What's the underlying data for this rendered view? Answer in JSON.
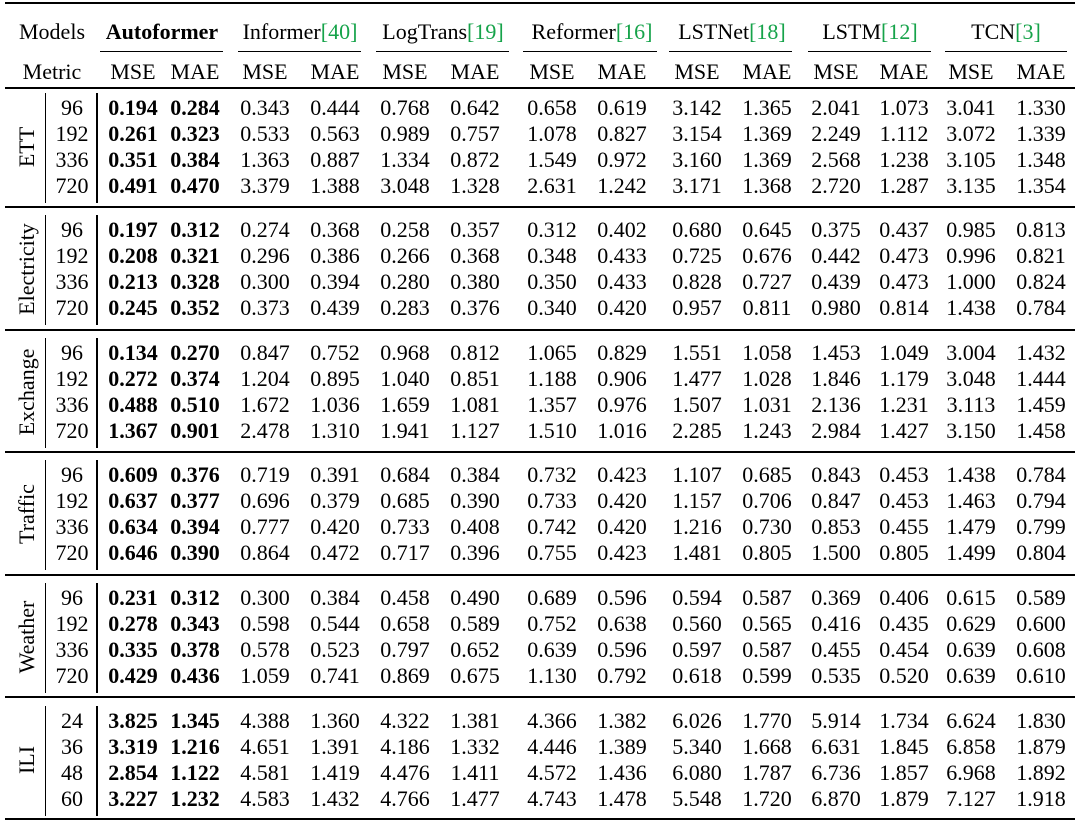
{
  "header": {
    "corner_models": "Models",
    "corner_metric": "Metric",
    "models": [
      {
        "name": "Autoformer",
        "ref": "",
        "bold": true
      },
      {
        "name": "Informer",
        "ref": "[40]",
        "bold": false
      },
      {
        "name": "LogTrans",
        "ref": "[19]",
        "bold": false
      },
      {
        "name": "Reformer",
        "ref": "[16]",
        "bold": false
      },
      {
        "name": "LSTNet",
        "ref": "[18]",
        "bold": false
      },
      {
        "name": "LSTM",
        "ref": "[12]",
        "bold": false
      },
      {
        "name": "TCN",
        "ref": "[3]",
        "bold": false
      }
    ],
    "metrics": [
      "MSE",
      "MAE"
    ]
  },
  "groups": [
    {
      "name": "ETT",
      "rows": [
        {
          "h": "96",
          "v": [
            "0.194",
            "0.284",
            "0.343",
            "0.444",
            "0.768",
            "0.642",
            "0.658",
            "0.619",
            "3.142",
            "1.365",
            "2.041",
            "1.073",
            "3.041",
            "1.330"
          ]
        },
        {
          "h": "192",
          "v": [
            "0.261",
            "0.323",
            "0.533",
            "0.563",
            "0.989",
            "0.757",
            "1.078",
            "0.827",
            "3.154",
            "1.369",
            "2.249",
            "1.112",
            "3.072",
            "1.339"
          ]
        },
        {
          "h": "336",
          "v": [
            "0.351",
            "0.384",
            "1.363",
            "0.887",
            "1.334",
            "0.872",
            "1.549",
            "0.972",
            "3.160",
            "1.369",
            "2.568",
            "1.238",
            "3.105",
            "1.348"
          ]
        },
        {
          "h": "720",
          "v": [
            "0.491",
            "0.470",
            "3.379",
            "1.388",
            "3.048",
            "1.328",
            "2.631",
            "1.242",
            "3.171",
            "1.368",
            "2.720",
            "1.287",
            "3.135",
            "1.354"
          ]
        }
      ]
    },
    {
      "name": "Electricity",
      "rows": [
        {
          "h": "96",
          "v": [
            "0.197",
            "0.312",
            "0.274",
            "0.368",
            "0.258",
            "0.357",
            "0.312",
            "0.402",
            "0.680",
            "0.645",
            "0.375",
            "0.437",
            "0.985",
            "0.813"
          ]
        },
        {
          "h": "192",
          "v": [
            "0.208",
            "0.321",
            "0.296",
            "0.386",
            "0.266",
            "0.368",
            "0.348",
            "0.433",
            "0.725",
            "0.676",
            "0.442",
            "0.473",
            "0.996",
            "0.821"
          ]
        },
        {
          "h": "336",
          "v": [
            "0.213",
            "0.328",
            "0.300",
            "0.394",
            "0.280",
            "0.380",
            "0.350",
            "0.433",
            "0.828",
            "0.727",
            "0.439",
            "0.473",
            "1.000",
            "0.824"
          ]
        },
        {
          "h": "720",
          "v": [
            "0.245",
            "0.352",
            "0.373",
            "0.439",
            "0.283",
            "0.376",
            "0.340",
            "0.420",
            "0.957",
            "0.811",
            "0.980",
            "0.814",
            "1.438",
            "0.784"
          ]
        }
      ]
    },
    {
      "name": "Exchange",
      "rows": [
        {
          "h": "96",
          "v": [
            "0.134",
            "0.270",
            "0.847",
            "0.752",
            "0.968",
            "0.812",
            "1.065",
            "0.829",
            "1.551",
            "1.058",
            "1.453",
            "1.049",
            "3.004",
            "1.432"
          ]
        },
        {
          "h": "192",
          "v": [
            "0.272",
            "0.374",
            "1.204",
            "0.895",
            "1.040",
            "0.851",
            "1.188",
            "0.906",
            "1.477",
            "1.028",
            "1.846",
            "1.179",
            "3.048",
            "1.444"
          ]
        },
        {
          "h": "336",
          "v": [
            "0.488",
            "0.510",
            "1.672",
            "1.036",
            "1.659",
            "1.081",
            "1.357",
            "0.976",
            "1.507",
            "1.031",
            "2.136",
            "1.231",
            "3.113",
            "1.459"
          ]
        },
        {
          "h": "720",
          "v": [
            "1.367",
            "0.901",
            "2.478",
            "1.310",
            "1.941",
            "1.127",
            "1.510",
            "1.016",
            "2.285",
            "1.243",
            "2.984",
            "1.427",
            "3.150",
            "1.458"
          ]
        }
      ]
    },
    {
      "name": "Traffic",
      "rows": [
        {
          "h": "96",
          "v": [
            "0.609",
            "0.376",
            "0.719",
            "0.391",
            "0.684",
            "0.384",
            "0.732",
            "0.423",
            "1.107",
            "0.685",
            "0.843",
            "0.453",
            "1.438",
            "0.784"
          ]
        },
        {
          "h": "192",
          "v": [
            "0.637",
            "0.377",
            "0.696",
            "0.379",
            "0.685",
            "0.390",
            "0.733",
            "0.420",
            "1.157",
            "0.706",
            "0.847",
            "0.453",
            "1.463",
            "0.794"
          ]
        },
        {
          "h": "336",
          "v": [
            "0.634",
            "0.394",
            "0.777",
            "0.420",
            "0.733",
            "0.408",
            "0.742",
            "0.420",
            "1.216",
            "0.730",
            "0.853",
            "0.455",
            "1.479",
            "0.799"
          ]
        },
        {
          "h": "720",
          "v": [
            "0.646",
            "0.390",
            "0.864",
            "0.472",
            "0.717",
            "0.396",
            "0.755",
            "0.423",
            "1.481",
            "0.805",
            "1.500",
            "0.805",
            "1.499",
            "0.804"
          ]
        }
      ]
    },
    {
      "name": "Weather",
      "rows": [
        {
          "h": "96",
          "v": [
            "0.231",
            "0.312",
            "0.300",
            "0.384",
            "0.458",
            "0.490",
            "0.689",
            "0.596",
            "0.594",
            "0.587",
            "0.369",
            "0.406",
            "0.615",
            "0.589"
          ]
        },
        {
          "h": "192",
          "v": [
            "0.278",
            "0.343",
            "0.598",
            "0.544",
            "0.658",
            "0.589",
            "0.752",
            "0.638",
            "0.560",
            "0.565",
            "0.416",
            "0.435",
            "0.629",
            "0.600"
          ]
        },
        {
          "h": "336",
          "v": [
            "0.335",
            "0.378",
            "0.578",
            "0.523",
            "0.797",
            "0.652",
            "0.639",
            "0.596",
            "0.597",
            "0.587",
            "0.455",
            "0.454",
            "0.639",
            "0.608"
          ]
        },
        {
          "h": "720",
          "v": [
            "0.429",
            "0.436",
            "1.059",
            "0.741",
            "0.869",
            "0.675",
            "1.130",
            "0.792",
            "0.618",
            "0.599",
            "0.535",
            "0.520",
            "0.639",
            "0.610"
          ]
        }
      ]
    },
    {
      "name": "ILI",
      "rows": [
        {
          "h": "24",
          "v": [
            "3.825",
            "1.345",
            "4.388",
            "1.360",
            "4.322",
            "1.381",
            "4.366",
            "1.382",
            "6.026",
            "1.770",
            "5.914",
            "1.734",
            "6.624",
            "1.830"
          ]
        },
        {
          "h": "36",
          "v": [
            "3.319",
            "1.216",
            "4.651",
            "1.391",
            "4.186",
            "1.332",
            "4.446",
            "1.389",
            "5.340",
            "1.668",
            "6.631",
            "1.845",
            "6.858",
            "1.879"
          ]
        },
        {
          "h": "48",
          "v": [
            "2.854",
            "1.122",
            "4.581",
            "1.419",
            "4.476",
            "1.411",
            "4.572",
            "1.436",
            "6.080",
            "1.787",
            "6.736",
            "1.857",
            "6.968",
            "1.892"
          ]
        },
        {
          "h": "60",
          "v": [
            "3.227",
            "1.232",
            "4.583",
            "1.432",
            "4.766",
            "1.477",
            "4.743",
            "1.478",
            "5.548",
            "1.720",
            "6.870",
            "1.879",
            "7.127",
            "1.918"
          ]
        }
      ]
    }
  ],
  "colors": {
    "reference": "#16a34a",
    "text": "#000000"
  }
}
